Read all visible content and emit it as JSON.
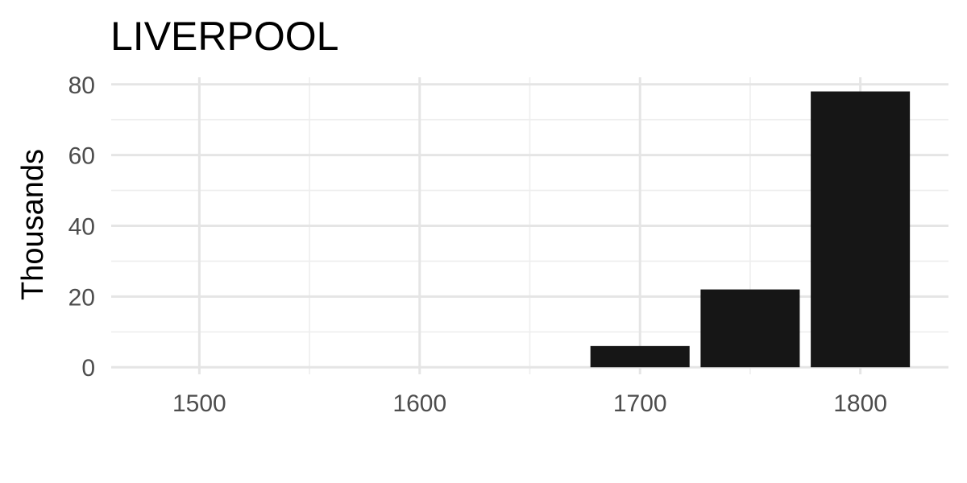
{
  "chart_data": {
    "type": "bar",
    "title": "LIVERPOOL",
    "xlabel": "",
    "ylabel": "Thousands",
    "x": [
      1700,
      1750,
      1800
    ],
    "values": [
      6,
      22,
      78
    ],
    "bar_color": "#161616",
    "xlim": [
      1460,
      1840
    ],
    "ylim": [
      -2,
      82
    ],
    "xticks": [
      1500,
      1600,
      1700,
      1800
    ],
    "xtick_labels": [
      "1500",
      "1600",
      "1700",
      "1800"
    ],
    "yticks": [
      0,
      20,
      40,
      60,
      80
    ],
    "ytick_labels": [
      "0",
      "20",
      "40",
      "60",
      "80"
    ],
    "grid": true,
    "legend": "none"
  }
}
